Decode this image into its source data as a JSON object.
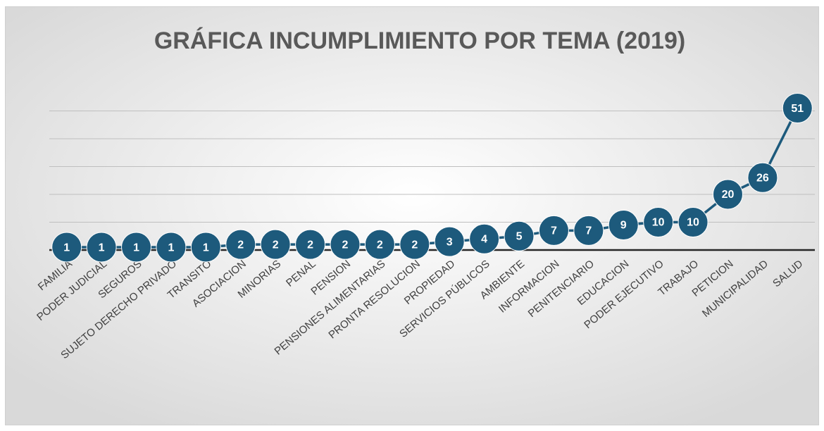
{
  "chart_data": {
    "type": "line",
    "title": "GRÁFICA INCUMPLIMIENTO POR TEMA (2019)",
    "categories": [
      "FAMILIA",
      "PODER JUDICIAL",
      "SEGUROS",
      "SUJETO DERECHO PRIVADO",
      "TRANSITO",
      "ASOCIACION",
      "MINORIAS",
      "PENAL",
      "PENSION",
      "PENSIONES ALIMENTARIAS",
      "PRONTA RESOLUCION",
      "PROPIEDAD",
      "SERVICIOS PÚBLICOS",
      "AMBIENTE",
      "INFORMACION",
      "PENITENCIARIO",
      "EDUCACION",
      "PODER EJECUTIVO",
      "TRABAJO",
      "PETICION",
      "MUNICIPALIDAD",
      "SALUD"
    ],
    "values": [
      1,
      1,
      1,
      1,
      1,
      2,
      2,
      2,
      2,
      2,
      2,
      3,
      4,
      5,
      7,
      7,
      9,
      10,
      10,
      20,
      26,
      51
    ],
    "color": "#1d5a7c",
    "ylim": [
      0,
      60
    ],
    "yticks": [
      0,
      10,
      20,
      30,
      40,
      50
    ],
    "grid": true
  }
}
